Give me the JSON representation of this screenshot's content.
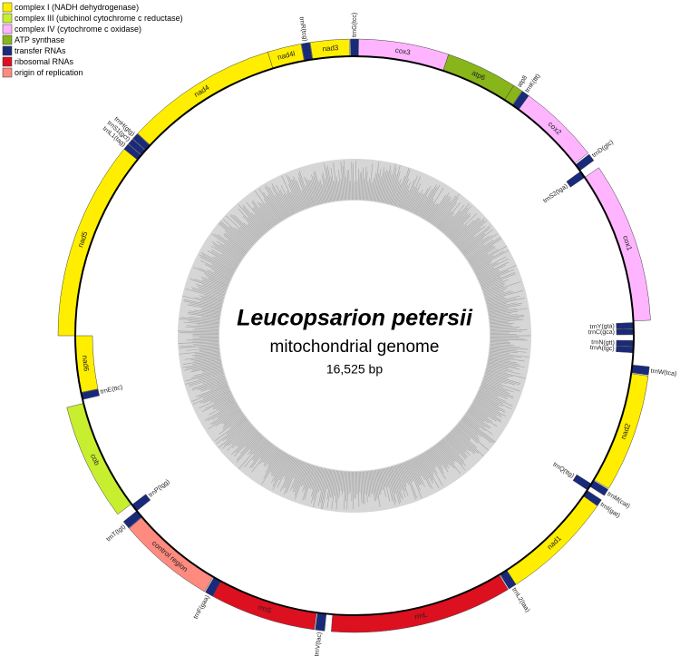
{
  "legend": [
    {
      "label": "complex I (NADH dehydrogenase)",
      "color": "#ffee00"
    },
    {
      "label": "complex III (ubichinol cytochrome c reductase)",
      "color": "#c8ee30"
    },
    {
      "label": "complex IV (cytochrome c oxidase)",
      "color": "#ffb4ff"
    },
    {
      "label": "ATP synthase",
      "color": "#88b51a"
    },
    {
      "label": "transfer RNAs",
      "color": "#1a2a7a"
    },
    {
      "label": "ribosomal RNAs",
      "color": "#dd1020"
    },
    {
      "label": "origin of replication",
      "color": "#ff8a80"
    }
  ],
  "title": "Leucopsarion petersii",
  "subtitle": "mitochondrial genome",
  "length": "16,525 bp",
  "genes": [
    "trnG(tcc)",
    "cox3",
    "atp6",
    "atp8",
    "trnK(ttt)",
    "cox2",
    "trnD(gtc)",
    "trnS2(tga)",
    "cox1",
    "trnY(gta)",
    "trnC(gca)",
    "trnN(gtt)",
    "trnA(tgc)",
    "trnW(tca)",
    "nad2",
    "trnM(cat)",
    "trnQ(ttg)",
    "trnI(gat)",
    "nad1",
    "trnL2(taa)",
    "rrnL",
    "trnV(tac)",
    "rrnS",
    "trnF(gaa)",
    "control region",
    "trnT(tgt)",
    "trnP(tgg)",
    "cob",
    "trnE(ttc)",
    "nad6",
    "nad5",
    "trnL1(tag)",
    "trnS1(gct)",
    "trnH(gtg)",
    "nad4",
    "nad4l",
    "trnR(tcg)",
    "nad3"
  ]
}
